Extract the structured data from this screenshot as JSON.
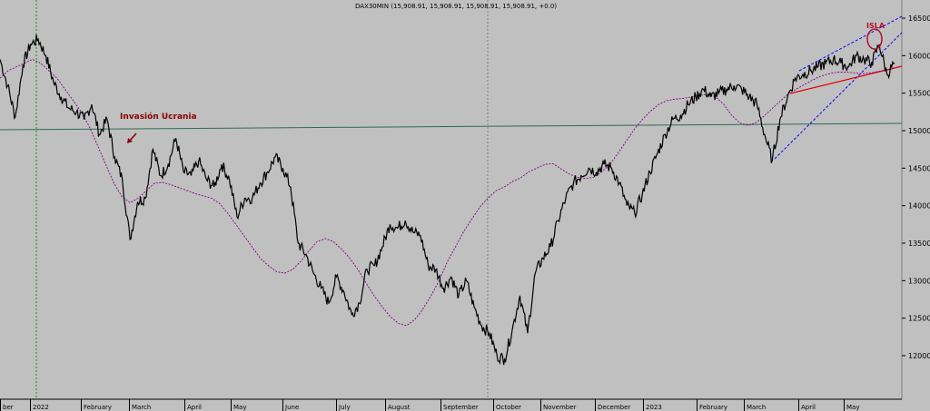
{
  "chart_data": {
    "type": "line",
    "title": "DAX30MIN (15,908.91, 15,908.91, 15,908.91, 15,908.91, +0.0)",
    "ylim": [
      11700,
      16650
    ],
    "y_ticks": [
      12000,
      12500,
      13000,
      13500,
      14000,
      14500,
      15000,
      15500,
      16000,
      16500
    ],
    "y_tick_labels": [
      "12000",
      "12500",
      "13000",
      "13500",
      "14000",
      "14500",
      "15000",
      "15500",
      "16000",
      "16500"
    ],
    "x_tick_labels": [
      "ber",
      "2022",
      "February",
      "March",
      "April",
      "May",
      "June",
      "July",
      "August",
      "September",
      "October",
      "November",
      "December",
      "2023",
      "February",
      "March",
      "April",
      "May"
    ],
    "last_value": 15908.91,
    "series": [
      {
        "values": [
          15950,
          15600,
          15180,
          15880,
          16150,
          16220,
          16000,
          15650,
          15450,
          15300,
          15250,
          15150,
          15350,
          14950,
          15150,
          14650,
          14350,
          13550,
          14050,
          14100,
          14750,
          14400,
          14550,
          14900,
          14450,
          14400,
          14600,
          14350,
          14250,
          14550,
          14350,
          13850,
          14100,
          14100,
          14300,
          14450,
          14650,
          14500,
          14250,
          13500,
          13350,
          13100,
          12900,
          12700,
          13050,
          12850,
          12550,
          12700,
          13150,
          13200,
          13450,
          13750,
          13700,
          13800,
          13650,
          13600,
          13200,
          13150,
          12900,
          13050,
          12800,
          13000,
          12650,
          12400,
          12300,
          12000,
          11950,
          12350,
          12800,
          12300,
          13100,
          13300,
          13450,
          13800,
          14100,
          14300,
          14400,
          14500,
          14450,
          14550,
          14500,
          14300,
          14000,
          13900,
          14150,
          14450,
          14700,
          14950,
          15150,
          15200,
          15350,
          15450,
          15550,
          15450,
          15500,
          15550,
          15600,
          15550,
          15450,
          15350,
          14950,
          14600,
          15150,
          15450,
          15700,
          15750,
          15800,
          15850,
          15900,
          15950,
          15900,
          15850,
          16000,
          15950,
          15900,
          16150,
          15750,
          15900
        ]
      },
      {
        "values": [
          15700,
          15800,
          15850,
          15900,
          15950,
          15900,
          15800,
          15700,
          15550,
          15400,
          15250,
          15050,
          14800,
          14550,
          14300,
          14120,
          14040,
          14100,
          14200,
          14300,
          14310,
          14280,
          14240,
          14200,
          14160,
          14130,
          14100,
          14030,
          13900,
          13750,
          13600,
          13450,
          13300,
          13200,
          13120,
          13100,
          13150,
          13260,
          13400,
          13520,
          13560,
          13520,
          13420,
          13300,
          13150,
          12970,
          12800,
          12650,
          12520,
          12430,
          12400,
          12480,
          12620,
          12800,
          13000,
          13250,
          13450,
          13650,
          13820,
          13980,
          14100,
          14200,
          14250,
          14320,
          14370,
          14450,
          14500,
          14550,
          14560,
          14490,
          14420,
          14380,
          14360,
          14380,
          14450,
          14550,
          14700,
          14860,
          15020,
          15150,
          15260,
          15350,
          15400,
          15420,
          15430,
          15450,
          15470,
          15480,
          15450,
          15350,
          15200,
          15100,
          15070,
          15110,
          15200,
          15300,
          15400,
          15500,
          15560,
          15620,
          15680,
          15730,
          15760,
          15780,
          15780,
          15770,
          15760,
          15770,
          15790,
          15810,
          15830
        ]
      }
    ],
    "horizontal_line": 14950,
    "annotations": [
      "Invasión Ucrania",
      "ISLA"
    ],
    "grid": false,
    "colors": {
      "background": "#c0c0c0",
      "price": "#000000",
      "moving_average": "#800080",
      "horizontal_line": "#2e6b54",
      "support_line": "#e00000",
      "channel": "#0000ff",
      "vertical_marker_green": "#00a000",
      "vertical_marker_gray": "#808080",
      "annotation": "#8b0000"
    }
  }
}
